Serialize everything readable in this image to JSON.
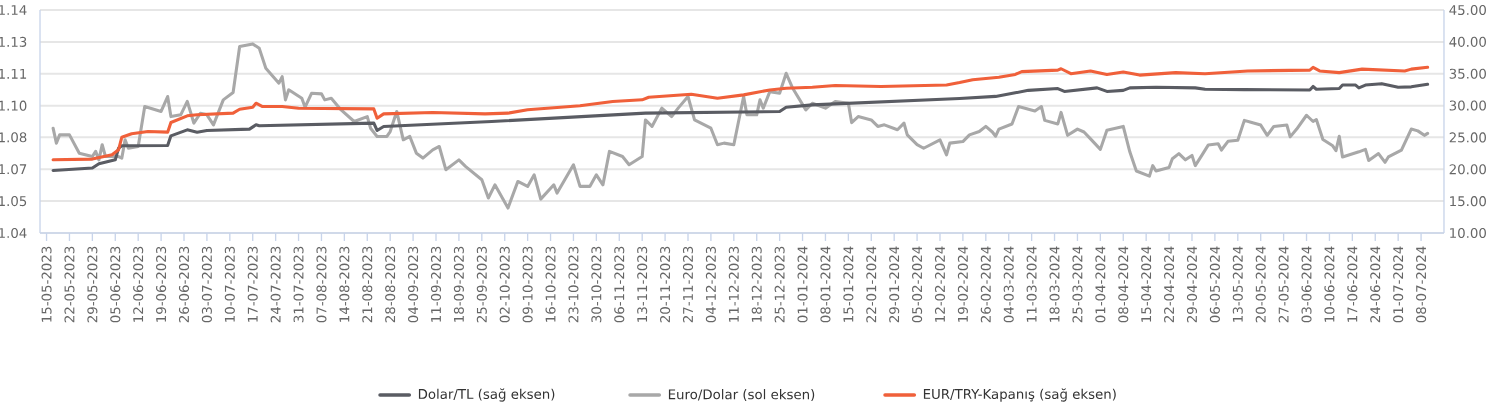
{
  "chart_data": {
    "type": "line",
    "grid": "y",
    "legend": "bottom",
    "xlim": [
      "2023-05-13",
      "2024-07-15"
    ],
    "xticks": [
      {
        "value": "2023-05-15",
        "label": "15-05-2023"
      },
      {
        "value": "2023-05-22",
        "label": "22-05-2023"
      },
      {
        "value": "2023-05-29",
        "label": "29-05-2023"
      },
      {
        "value": "2023-06-05",
        "label": "05-06-2023"
      },
      {
        "value": "2023-06-12",
        "label": "12-06-2023"
      },
      {
        "value": "2023-06-19",
        "label": "19-06-2023"
      },
      {
        "value": "2023-06-26",
        "label": "26-06-2023"
      },
      {
        "value": "2023-07-03",
        "label": "03-07-2023"
      },
      {
        "value": "2023-07-10",
        "label": "10-07-2023"
      },
      {
        "value": "2023-07-17",
        "label": "17-07-2023"
      },
      {
        "value": "2023-07-24",
        "label": "24-07-2023"
      },
      {
        "value": "2023-07-31",
        "label": "31-07-2023"
      },
      {
        "value": "2023-08-07",
        "label": "07-08-2023"
      },
      {
        "value": "2023-08-14",
        "label": "14-08-2023"
      },
      {
        "value": "2023-08-21",
        "label": "21-08-2023"
      },
      {
        "value": "2023-08-28",
        "label": "28-08-2023"
      },
      {
        "value": "2023-09-04",
        "label": "04-09-2023"
      },
      {
        "value": "2023-09-11",
        "label": "11-09-2023"
      },
      {
        "value": "2023-09-18",
        "label": "18-09-2023"
      },
      {
        "value": "2023-09-25",
        "label": "25-09-2023"
      },
      {
        "value": "2023-10-02",
        "label": "02-10-2023"
      },
      {
        "value": "2023-10-09",
        "label": "09-10-2023"
      },
      {
        "value": "2023-10-16",
        "label": "16-10-2023"
      },
      {
        "value": "2023-10-23",
        "label": "23-10-2023"
      },
      {
        "value": "2023-10-30",
        "label": "30-10-2023"
      },
      {
        "value": "2023-11-06",
        "label": "06-11-2023"
      },
      {
        "value": "2023-11-13",
        "label": "13-11-2023"
      },
      {
        "value": "2023-11-20",
        "label": "20-11-2023"
      },
      {
        "value": "2023-11-27",
        "label": "27-11-2023"
      },
      {
        "value": "2023-12-04",
        "label": "04-12-2023"
      },
      {
        "value": "2023-12-11",
        "label": "11-12-2023"
      },
      {
        "value": "2023-12-18",
        "label": "18-12-2023"
      },
      {
        "value": "2023-12-25",
        "label": "25-12-2023"
      },
      {
        "value": "2024-01-01",
        "label": "01-01-2024"
      },
      {
        "value": "2024-01-08",
        "label": "08-01-2024"
      },
      {
        "value": "2024-01-15",
        "label": "15-01-2024"
      },
      {
        "value": "2024-01-22",
        "label": "22-01-2024"
      },
      {
        "value": "2024-01-29",
        "label": "29-01-2024"
      },
      {
        "value": "2024-02-05",
        "label": "05-02-2024"
      },
      {
        "value": "2024-02-12",
        "label": "12-02-2024"
      },
      {
        "value": "2024-02-19",
        "label": "19-02-2024"
      },
      {
        "value": "2024-02-26",
        "label": "26-02-2024"
      },
      {
        "value": "2024-03-04",
        "label": "04-03-2024"
      },
      {
        "value": "2024-03-11",
        "label": "11-03-2024"
      },
      {
        "value": "2024-03-18",
        "label": "18-03-2024"
      },
      {
        "value": "2024-03-25",
        "label": "25-03-2024"
      },
      {
        "value": "2024-04-01",
        "label": "01-04-2024"
      },
      {
        "value": "2024-04-08",
        "label": "08-04-2024"
      },
      {
        "value": "2024-04-15",
        "label": "15-04-2024"
      },
      {
        "value": "2024-04-22",
        "label": "22-04-2024"
      },
      {
        "value": "2024-04-29",
        "label": "29-04-2024"
      },
      {
        "value": "2024-05-06",
        "label": "06-05-2024"
      },
      {
        "value": "2024-05-13",
        "label": "13-05-2024"
      },
      {
        "value": "2024-05-20",
        "label": "20-05-2024"
      },
      {
        "value": "2024-05-27",
        "label": "27-05-2024"
      },
      {
        "value": "2024-06-03",
        "label": "03-06-2024"
      },
      {
        "value": "2024-06-10",
        "label": "10-06-2024"
      },
      {
        "value": "2024-06-17",
        "label": "17-06-2024"
      },
      {
        "value": "2024-06-24",
        "label": "24-06-2024"
      },
      {
        "value": "2024-07-01",
        "label": "01-07-2024"
      },
      {
        "value": "2024-07-08",
        "label": "08-07-2024"
      }
    ],
    "ylim": [
      1.04,
      1.14
    ],
    "yticks": [
      1.04,
      {
        "value": 1.0543,
        "label": "1.05"
      },
      {
        "value": 1.0686,
        "label": "1.07"
      },
      {
        "value": 1.0829,
        "label": "1.08"
      },
      {
        "value": 1.0971,
        "label": "1.10"
      },
      {
        "value": 1.1114,
        "label": "1.11"
      },
      {
        "value": 1.1257,
        "label": "1.13"
      },
      1.14
    ],
    "y2lim": [
      10,
      45
    ],
    "y2ticks": [
      {
        "value": 10,
        "label": "10.00"
      },
      {
        "value": 15,
        "label": "15.00"
      },
      {
        "value": 20,
        "label": "20.00"
      },
      {
        "value": 25,
        "label": "25.00"
      },
      {
        "value": 30,
        "label": "30.00"
      },
      {
        "value": 35,
        "label": "35.00"
      },
      {
        "value": 40,
        "label": "40.00"
      },
      {
        "value": 45,
        "label": "45.00"
      }
    ],
    "series": [
      {
        "name": "Dolar/TL (sağ eksen)",
        "color": "#5a5c63",
        "axis": "y2",
        "x": [
          "2023-05-17",
          "2023-05-29",
          "2023-05-31",
          "2023-06-05",
          "2023-06-06",
          "2023-06-07",
          "2023-06-21",
          "2023-06-22",
          "2023-06-27",
          "2023-06-30",
          "2023-07-03",
          "2023-07-16",
          "2023-07-18",
          "2023-07-19",
          "2023-08-23",
          "2023-08-24",
          "2023-08-26",
          "2023-09-28",
          "2023-11-14",
          "2023-12-25",
          "2023-12-27",
          "2024-01-04",
          "2024-02-18",
          "2024-02-29",
          "2024-03-06",
          "2024-03-10",
          "2024-03-19",
          "2024-03-21",
          "2024-03-31",
          "2024-04-03",
          "2024-04-08",
          "2024-04-10",
          "2024-04-18",
          "2024-04-30",
          "2024-05-03",
          "2024-05-15",
          "2024-06-04",
          "2024-06-05",
          "2024-06-06",
          "2024-06-13",
          "2024-06-14",
          "2024-06-18",
          "2024-06-19",
          "2024-06-21",
          "2024-06-26",
          "2024-07-01",
          "2024-07-05",
          "2024-07-10"
        ],
        "values": [
          19.82,
          20.19,
          20.87,
          21.49,
          23.32,
          23.69,
          23.73,
          25.25,
          26.19,
          25.83,
          26.09,
          26.3,
          26.98,
          26.82,
          27.24,
          26.09,
          26.72,
          27.5,
          28.81,
          29.07,
          29.75,
          30.11,
          31.11,
          31.44,
          32.0,
          32.39,
          32.67,
          32.22,
          32.78,
          32.22,
          32.39,
          32.78,
          32.89,
          32.78,
          32.56,
          32.5,
          32.44,
          33.0,
          32.56,
          32.67,
          33.22,
          33.22,
          32.78,
          33.22,
          33.44,
          32.89,
          32.94,
          33.33
        ]
      },
      {
        "name": "Euro/Dolar (sol eksen)",
        "color": "#a8a8a8",
        "x": [
          "2023-05-17",
          "2023-05-18",
          "2023-05-19",
          "2023-05-22",
          "2023-05-25",
          "2023-05-29",
          "2023-05-30",
          "2023-05-31",
          "2023-06-01",
          "2023-06-02",
          "2023-06-06",
          "2023-06-07",
          "2023-06-08",
          "2023-06-09",
          "2023-06-12",
          "2023-06-14",
          "2023-06-19",
          "2023-06-21",
          "2023-06-22",
          "2023-06-25",
          "2023-06-27",
          "2023-06-29",
          "2023-07-01",
          "2023-07-03",
          "2023-07-05",
          "2023-07-08",
          "2023-07-11",
          "2023-07-13",
          "2023-07-17",
          "2023-07-19",
          "2023-07-21",
          "2023-07-25",
          "2023-07-26",
          "2023-07-27",
          "2023-07-28",
          "2023-08-01",
          "2023-08-02",
          "2023-08-04",
          "2023-08-07",
          "2023-08-08",
          "2023-08-10",
          "2023-08-13",
          "2023-08-17",
          "2023-08-21",
          "2023-08-22",
          "2023-08-24",
          "2023-08-27",
          "2023-08-28",
          "2023-08-30",
          "2023-09-01",
          "2023-09-03",
          "2023-09-05",
          "2023-09-07",
          "2023-09-10",
          "2023-09-12",
          "2023-09-14",
          "2023-09-18",
          "2023-09-20",
          "2023-09-25",
          "2023-09-27",
          "2023-09-29",
          "2023-10-03",
          "2023-10-06",
          "2023-10-09",
          "2023-10-11",
          "2023-10-13",
          "2023-10-17",
          "2023-10-18",
          "2023-10-23",
          "2023-10-25",
          "2023-10-28",
          "2023-10-30",
          "2023-11-01",
          "2023-11-03",
          "2023-11-07",
          "2023-11-09",
          "2023-11-13",
          "2023-11-14",
          "2023-11-16",
          "2023-11-19",
          "2023-11-22",
          "2023-11-24",
          "2023-11-27",
          "2023-11-29",
          "2023-12-04",
          "2023-12-06",
          "2023-12-08",
          "2023-12-11",
          "2023-12-14",
          "2023-12-15",
          "2023-12-18",
          "2023-12-19",
          "2023-12-20",
          "2023-12-22",
          "2023-12-25",
          "2023-12-27",
          "2023-12-29",
          "2024-01-02",
          "2024-01-04",
          "2024-01-08",
          "2024-01-11",
          "2024-01-15",
          "2024-01-16",
          "2024-01-18",
          "2024-01-22",
          "2024-01-24",
          "2024-01-26",
          "2024-01-30",
          "2024-02-01",
          "2024-02-02",
          "2024-02-05",
          "2024-02-07",
          "2024-02-12",
          "2024-02-14",
          "2024-02-15",
          "2024-02-19",
          "2024-02-21",
          "2024-02-24",
          "2024-02-26",
          "2024-02-28",
          "2024-02-29",
          "2024-03-01",
          "2024-03-05",
          "2024-03-07",
          "2024-03-12",
          "2024-03-14",
          "2024-03-15",
          "2024-03-19",
          "2024-03-20",
          "2024-03-22",
          "2024-03-25",
          "2024-03-27",
          "2024-03-29",
          "2024-04-01",
          "2024-04-03",
          "2024-04-08",
          "2024-04-10",
          "2024-04-12",
          "2024-04-16",
          "2024-04-17",
          "2024-04-18",
          "2024-04-22",
          "2024-04-23",
          "2024-04-25",
          "2024-04-27",
          "2024-04-29",
          "2024-04-30",
          "2024-05-02",
          "2024-05-04",
          "2024-05-07",
          "2024-05-08",
          "2024-05-10",
          "2024-05-13",
          "2024-05-15",
          "2024-05-17",
          "2024-05-20",
          "2024-05-22",
          "2024-05-24",
          "2024-05-28",
          "2024-05-29",
          "2024-05-31",
          "2024-06-03",
          "2024-06-05",
          "2024-06-06",
          "2024-06-08",
          "2024-06-11",
          "2024-06-12",
          "2024-06-13",
          "2024-06-14",
          "2024-06-19",
          "2024-06-21",
          "2024-06-22",
          "2024-06-25",
          "2024-06-27",
          "2024-06-28",
          "2024-07-02",
          "2024-07-05",
          "2024-07-07",
          "2024-07-09",
          "2024-07-10"
        ],
        "values": [
          1.087,
          1.0803,
          1.084,
          1.084,
          1.0758,
          1.0743,
          1.0766,
          1.0728,
          1.0796,
          1.0743,
          1.0743,
          1.0736,
          1.0818,
          1.078,
          1.0788,
          1.0967,
          1.0945,
          1.1012,
          1.0922,
          1.093,
          1.099,
          1.0893,
          1.0937,
          1.093,
          1.0885,
          1.0997,
          1.103,
          1.1236,
          1.1248,
          1.1228,
          1.1139,
          1.1072,
          1.1101,
          1.0997,
          1.1042,
          1.1004,
          1.0964,
          1.1027,
          1.1024,
          1.0997,
          1.1004,
          1.0952,
          1.09,
          1.0922,
          1.087,
          1.0833,
          1.0833,
          1.0855,
          1.0945,
          1.0818,
          1.0833,
          1.0758,
          1.0736,
          1.0773,
          1.0788,
          1.0684,
          1.0728,
          1.0699,
          1.0639,
          1.0557,
          1.0616,
          1.0512,
          1.0631,
          1.0609,
          1.0661,
          1.0552,
          1.0616,
          1.0579,
          1.0706,
          1.0609,
          1.0609,
          1.0661,
          1.0616,
          1.0766,
          1.0743,
          1.0706,
          1.0743,
          1.0907,
          1.0878,
          1.096,
          1.0922,
          1.096,
          1.1012,
          1.0907,
          1.087,
          1.0796,
          1.0803,
          1.0796,
          1.1012,
          1.093,
          1.093,
          1.0997,
          1.096,
          1.1034,
          1.1027,
          1.1116,
          1.1049,
          1.0952,
          1.0982,
          1.096,
          1.099,
          1.0982,
          1.0895,
          1.0922,
          1.0907,
          1.0878,
          1.0885,
          1.0863,
          1.0893,
          1.084,
          1.0796,
          1.078,
          1.0818,
          1.075,
          1.0803,
          1.081,
          1.084,
          1.0855,
          1.0878,
          1.0853,
          1.0834,
          1.0866,
          1.0889,
          1.0967,
          1.0947,
          1.0967,
          1.0905,
          1.0889,
          1.0941,
          1.0838,
          1.0866,
          1.0853,
          1.0822,
          1.0775,
          1.0861,
          1.0878,
          1.0764,
          1.0678,
          1.0655,
          1.0702,
          1.0678,
          1.0694,
          1.0733,
          1.0756,
          1.0728,
          1.0748,
          1.0702,
          1.0748,
          1.0795,
          1.08,
          1.0772,
          1.0811,
          1.0816,
          1.0905,
          1.0897,
          1.0884,
          1.0838,
          1.0878,
          1.0884,
          1.0831,
          1.0866,
          1.0928,
          1.09,
          1.0909,
          1.0819,
          1.0791,
          1.0769,
          1.0834,
          1.0741,
          1.0764,
          1.0775,
          1.0725,
          1.0756,
          1.0717,
          1.0741,
          1.0772,
          1.0866,
          1.0858,
          1.0838,
          1.0847
        ]
      },
      {
        "name": "EUR/TRY-Kapanış (sağ eksen)",
        "color": "#f0603a",
        "axis": "y2",
        "x": [
          "2023-05-17",
          "2023-05-29",
          "2023-06-04",
          "2023-06-06",
          "2023-06-07",
          "2023-06-10",
          "2023-06-15",
          "2023-06-21",
          "2023-06-22",
          "2023-06-27",
          "2023-06-30",
          "2023-07-11",
          "2023-07-13",
          "2023-07-17",
          "2023-07-18",
          "2023-07-20",
          "2023-07-26",
          "2023-07-31",
          "2023-08-23",
          "2023-08-24",
          "2023-08-26",
          "2023-09-10",
          "2023-09-26",
          "2023-10-03",
          "2023-10-09",
          "2023-10-25",
          "2023-11-04",
          "2023-11-13",
          "2023-11-15",
          "2023-11-28",
          "2023-12-06",
          "2023-12-14",
          "2023-12-22",
          "2023-12-27",
          "2024-01-04",
          "2024-01-11",
          "2024-01-25",
          "2024-02-14",
          "2024-02-18",
          "2024-02-22",
          "2024-03-01",
          "2024-03-06",
          "2024-03-08",
          "2024-03-19",
          "2024-03-20",
          "2024-03-23",
          "2024-03-29",
          "2024-04-03",
          "2024-04-08",
          "2024-04-13",
          "2024-04-24",
          "2024-05-03",
          "2024-05-16",
          "2024-06-04",
          "2024-06-05",
          "2024-06-07",
          "2024-06-13",
          "2024-06-20",
          "2024-07-03",
          "2024-07-05",
          "2024-07-10"
        ],
        "values": [
          21.49,
          21.6,
          22.28,
          23.06,
          25.04,
          25.57,
          25.93,
          25.83,
          27.34,
          28.39,
          28.55,
          28.81,
          29.43,
          29.75,
          30.37,
          29.85,
          29.85,
          29.59,
          29.48,
          28.02,
          28.7,
          28.91,
          28.7,
          28.81,
          29.33,
          29.96,
          30.64,
          30.9,
          31.31,
          31.78,
          31.16,
          31.68,
          32.46,
          32.72,
          32.88,
          33.14,
          32.98,
          33.24,
          33.61,
          34.06,
          34.44,
          34.89,
          35.33,
          35.56,
          35.78,
          35.0,
          35.44,
          34.89,
          35.28,
          34.78,
          35.17,
          35.0,
          35.44,
          35.56,
          36.0,
          35.44,
          35.17,
          35.72,
          35.44,
          35.72,
          36.0
        ]
      }
    ]
  }
}
